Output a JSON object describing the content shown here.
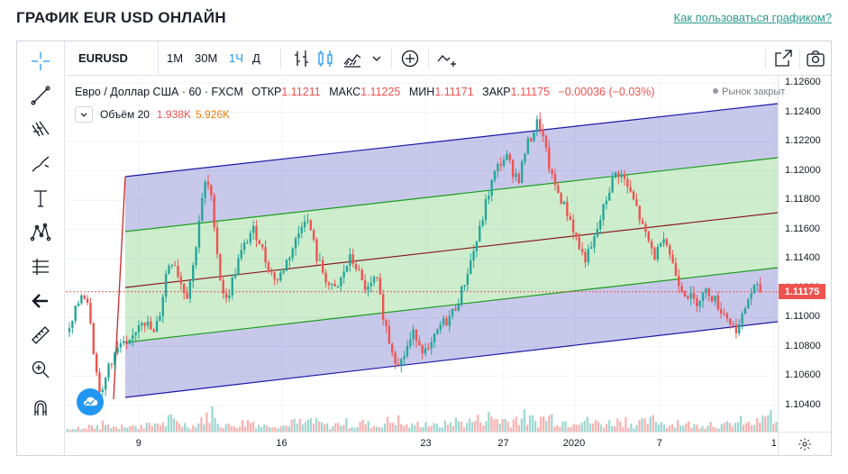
{
  "page": {
    "title": "ГРАФИК EUR USD ОНЛАЙН",
    "help_link": "Как пользоваться графиком?"
  },
  "toolbar": {
    "symbol": "EURUSD",
    "timeframes": [
      "1М",
      "30М",
      "1Ч",
      "Д"
    ],
    "active_timeframe": "1Ч"
  },
  "legend": {
    "instrument": "Евро / Доллар США · 60 · FXCM",
    "open_label": "ОТКР",
    "open": "1.11211",
    "high_label": "МАКС",
    "high": "1.11225",
    "low_label": "МИН",
    "low": "1.11171",
    "close_label": "ЗАКР",
    "close": "1.11175",
    "change": "−0.00036 (−0.03%)",
    "market_status": "Рынок закрыт"
  },
  "volume_legend": {
    "label": "Объём 20",
    "value1": "1.938K",
    "value2": "5.926K"
  },
  "colors": {
    "up": "#26a69a",
    "down": "#ef5350",
    "channel_outer": "#1a1aa8",
    "channel_inner": "#1b9e1b",
    "median": "#8b1a1a",
    "accent": "#2196f3"
  },
  "sidebar_tools": [
    "crosshair-icon",
    "trend-line-icon",
    "fib-icon",
    "brush-icon",
    "text-icon",
    "pattern-icon",
    "prediction-icon",
    "back-arrow-icon",
    "ruler-icon",
    "zoom-in-icon",
    "magnet-icon"
  ],
  "chart_data": {
    "type": "candlestick",
    "symbol": "EURUSD",
    "interval": "60",
    "source": "FXCM",
    "y_ticks": [
      "1.12600",
      "1.12400",
      "1.12200",
      "1.12000",
      "1.11800",
      "1.11600",
      "1.11400",
      "1.11200",
      "1.11000",
      "1.10800",
      "1.10600",
      "1.10400"
    ],
    "x_ticks": [
      "9",
      "16",
      "23",
      "27",
      "2020",
      "7",
      "1"
    ],
    "last_price": "1.11175",
    "ylim": [
      1.1022,
      1.1265
    ],
    "price_path": [
      1.109,
      1.1105,
      1.1118,
      1.111,
      1.1065,
      1.1045,
      1.1068,
      1.1075,
      1.1082,
      1.1078,
      1.109,
      1.11,
      1.1095,
      1.1088,
      1.1105,
      1.1135,
      1.114,
      1.1125,
      1.1115,
      1.1135,
      1.117,
      1.1195,
      1.1175,
      1.113,
      1.111,
      1.1125,
      1.114,
      1.115,
      1.116,
      1.1155,
      1.114,
      1.113,
      1.1125,
      1.1135,
      1.1145,
      1.1155,
      1.117,
      1.116,
      1.114,
      1.113,
      1.112,
      1.1118,
      1.113,
      1.114,
      1.1135,
      1.1122,
      1.1118,
      1.1128,
      1.1105,
      1.1085,
      1.1072,
      1.107,
      1.1082,
      1.109,
      1.108,
      1.1075,
      1.1085,
      1.1095,
      1.1098,
      1.1105,
      1.1115,
      1.113,
      1.1145,
      1.116,
      1.118,
      1.1195,
      1.1205,
      1.121,
      1.12,
      1.1195,
      1.1215,
      1.1225,
      1.1235,
      1.1215,
      1.1195,
      1.1185,
      1.1175,
      1.1165,
      1.115,
      1.114,
      1.1145,
      1.116,
      1.1175,
      1.119,
      1.12,
      1.1195,
      1.1185,
      1.1175,
      1.116,
      1.115,
      1.114,
      1.116,
      1.1145,
      1.113,
      1.112,
      1.1115,
      1.111,
      1.1115,
      1.1118,
      1.1112,
      1.1105,
      1.11,
      1.1092,
      1.1095,
      1.1112,
      1.112,
      1.1118
    ],
    "volume_profile": [
      2,
      3,
      2,
      4,
      3,
      5,
      4,
      3,
      6,
      4,
      3,
      5,
      4,
      6,
      5,
      8,
      7,
      5,
      4,
      6,
      9,
      14,
      8,
      5,
      4,
      5,
      6,
      7,
      5,
      4,
      6,
      5,
      4,
      7,
      6,
      5,
      8,
      6,
      5,
      4,
      5,
      6,
      5,
      4,
      6,
      5,
      4,
      6,
      7,
      8,
      5,
      4,
      5,
      6,
      5,
      4,
      5,
      6,
      7,
      6,
      7,
      8,
      9,
      10,
      9,
      8,
      7,
      9,
      10,
      8,
      7,
      9,
      10,
      8,
      7,
      6,
      9,
      8,
      7,
      6,
      5,
      6,
      7,
      8,
      6,
      5,
      6,
      7,
      8,
      6,
      5,
      7,
      6,
      5,
      4,
      5,
      6,
      5,
      4,
      5,
      6,
      7,
      5,
      6,
      8,
      14,
      5
    ]
  }
}
